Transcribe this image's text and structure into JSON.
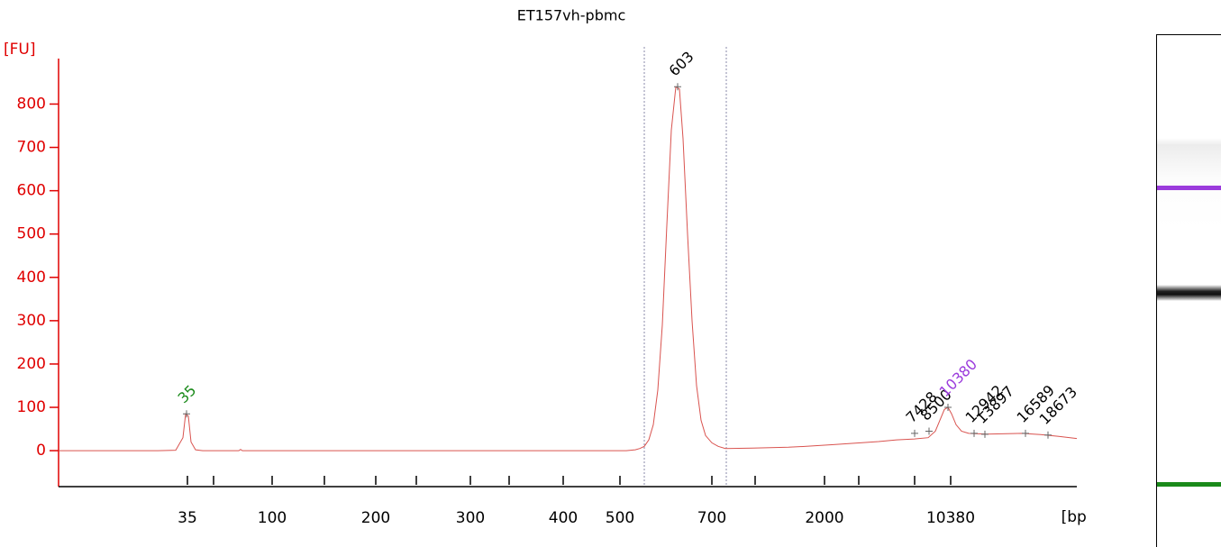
{
  "chart_data": {
    "type": "line",
    "title": "ET157vh-pbmc",
    "y_label": "[FU]",
    "x_label": "[bp]",
    "xlim": [
      17,
      130
    ],
    "ylim": [
      -83,
      905
    ],
    "yticks": [
      0,
      100,
      200,
      300,
      400,
      500,
      600,
      700,
      800
    ],
    "xticks": [
      {
        "value": 31.3,
        "label": "35"
      },
      {
        "value": 40.7,
        "label": "100"
      },
      {
        "value": 52.2,
        "label": "200"
      },
      {
        "value": 62.7,
        "label": "300"
      },
      {
        "value": 73,
        "label": "400"
      },
      {
        "value": 79.3,
        "label": "500"
      },
      {
        "value": 89.5,
        "label": "700"
      },
      {
        "value": 102,
        "label": "2000"
      },
      {
        "value": 116,
        "label": "10380"
      }
    ],
    "xminorticks": [
      34.2,
      46.5,
      56.7,
      67,
      94.3,
      105.8,
      112
    ],
    "region": [
      82,
      91.1
    ],
    "axis_color": "#e00000",
    "series": [
      {
        "color": "#d9534f",
        "x": [
          17,
          28,
          30,
          30.8,
          31.1,
          31.4,
          31.7,
          32.2,
          33,
          37,
          37.2,
          37.4,
          60,
          80,
          81,
          81.5,
          82,
          82.5,
          83,
          83.5,
          84,
          84.5,
          85,
          85.5,
          85.9,
          86.3,
          86.8,
          87.3,
          87.8,
          88.3,
          88.8,
          89.5,
          90.2,
          91,
          94,
          98,
          100,
          103,
          106,
          108,
          110,
          112,
          113.5,
          114.3,
          114.8,
          115.3,
          115.7,
          116.1,
          116.6,
          117.2,
          118,
          120,
          124,
          126,
          128,
          130
        ],
        "values": [
          0,
          0,
          1,
          30,
          85,
          80,
          20,
          2,
          0,
          0,
          3,
          0,
          0,
          0,
          2,
          5,
          10,
          25,
          60,
          140,
          290,
          520,
          740,
          840,
          835,
          720,
          500,
          300,
          150,
          70,
          35,
          18,
          10,
          5,
          6,
          8,
          10,
          14,
          18,
          21,
          25,
          27,
          30,
          45,
          70,
          95,
          100,
          85,
          60,
          45,
          40,
          38,
          40,
          37,
          33,
          28
        ]
      }
    ],
    "peaks": [
      {
        "label": "35",
        "x": 31.2,
        "y": 85,
        "color": "#1a8a1a"
      },
      {
        "label": "603",
        "x": 85.7,
        "y": 840,
        "color": "#000000"
      },
      {
        "label": "7428",
        "x": 112,
        "y": 40,
        "color": "#000000"
      },
      {
        "label": "8500",
        "x": 113.6,
        "y": 45,
        "color": "#000000"
      },
      {
        "label": "10380",
        "x": 115.7,
        "y": 100,
        "color": "#9b3bdc"
      },
      {
        "label": "12942",
        "x": 118.6,
        "y": 40,
        "color": "#000000"
      },
      {
        "label": "13897",
        "x": 119.8,
        "y": 38,
        "color": "#000000"
      },
      {
        "label": "16589",
        "x": 124.3,
        "y": 40,
        "color": "#000000"
      },
      {
        "label": "18673",
        "x": 126.8,
        "y": 36,
        "color": "#000000"
      }
    ]
  }
}
